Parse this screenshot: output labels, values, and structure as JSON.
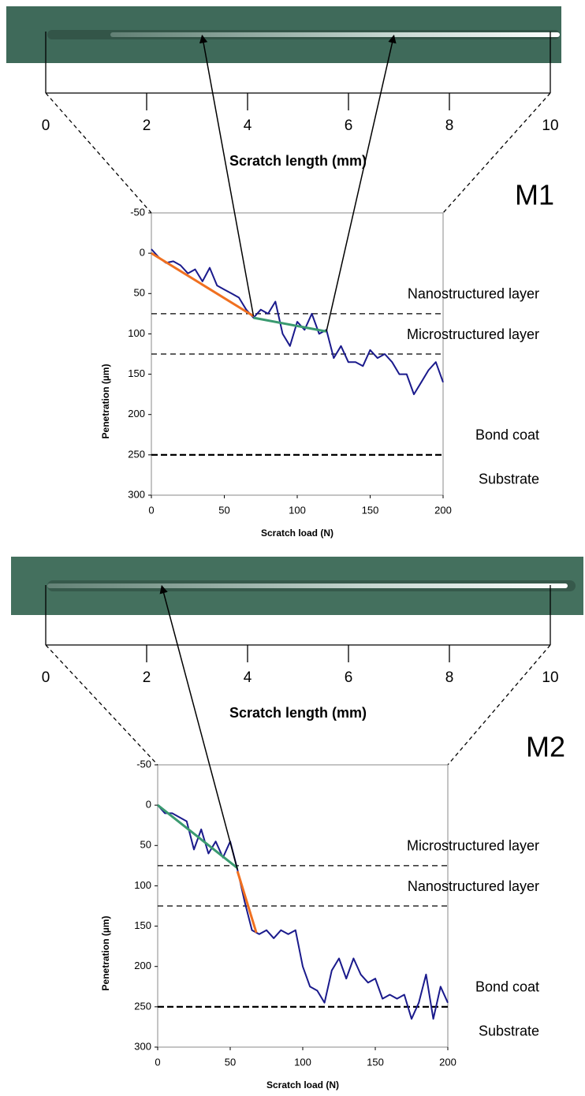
{
  "chart_data": [
    {
      "type": "line",
      "title": "M1",
      "x_label": "Scratch load (N)",
      "y_label": "Penetration (µm)",
      "xlim": [
        0,
        200
      ],
      "ylim": [
        -50,
        300
      ],
      "y_inverted": true,
      "xticks": [
        0,
        50,
        100,
        150,
        200
      ],
      "yticks": [
        -50,
        0,
        50,
        100,
        150,
        200,
        250,
        300
      ],
      "x": [
        0,
        5,
        10,
        15,
        20,
        25,
        30,
        35,
        40,
        45,
        50,
        55,
        60,
        65,
        70,
        75,
        80,
        85,
        90,
        95,
        100,
        105,
        110,
        115,
        120,
        125,
        130,
        135,
        140,
        145,
        150,
        155,
        160,
        165,
        170,
        175,
        180,
        185,
        190,
        195,
        200
      ],
      "series": [
        {
          "color": "#1a1a8c",
          "values": [
            -5,
            5,
            12,
            10,
            15,
            25,
            20,
            35,
            18,
            40,
            45,
            50,
            55,
            70,
            80,
            70,
            75,
            60,
            100,
            115,
            85,
            95,
            75,
            100,
            95,
            130,
            115,
            135,
            135,
            140,
            120,
            130,
            125,
            135,
            150,
            150,
            175,
            160,
            145,
            135,
            160
          ]
        },
        {
          "color": "#f07020",
          "x": [
            0,
            70
          ],
          "values": [
            0,
            78
          ]
        },
        {
          "color": "#3a9a70",
          "x": [
            70,
            120
          ],
          "values": [
            80,
            97
          ]
        }
      ],
      "boundaries": [
        75,
        125,
        250
      ],
      "layers": [
        "Nanostructured layer",
        "Microstructured layer",
        "Bond coat",
        "Substrate"
      ],
      "scale": {
        "label": "Scratch length (mm)",
        "lim": [
          0,
          10
        ],
        "ticks": [
          0,
          2,
          4,
          6,
          8,
          10
        ]
      },
      "arrows": [
        {
          "length": 3.1,
          "load": 70,
          "penetration": 78
        },
        {
          "length": 6.9,
          "load": 120,
          "penetration": 97
        }
      ]
    },
    {
      "type": "line",
      "title": "M2",
      "x_label": "Scratch load (N)",
      "y_label": "Penetration (µm)",
      "xlim": [
        0,
        200
      ],
      "ylim": [
        -50,
        300
      ],
      "y_inverted": true,
      "xticks": [
        0,
        50,
        100,
        150,
        200
      ],
      "yticks": [
        -50,
        0,
        50,
        100,
        150,
        200,
        250,
        300
      ],
      "x": [
        0,
        5,
        10,
        15,
        20,
        25,
        30,
        35,
        40,
        45,
        50,
        55,
        60,
        65,
        70,
        75,
        80,
        85,
        90,
        95,
        100,
        105,
        110,
        115,
        120,
        125,
        130,
        135,
        140,
        145,
        150,
        155,
        160,
        165,
        170,
        175,
        180,
        185,
        190,
        195,
        200
      ],
      "series": [
        {
          "color": "#1a1a8c",
          "values": [
            0,
            10,
            10,
            15,
            20,
            55,
            30,
            60,
            45,
            65,
            45,
            80,
            120,
            155,
            160,
            155,
            165,
            155,
            160,
            155,
            200,
            225,
            230,
            245,
            205,
            190,
            215,
            190,
            210,
            220,
            215,
            240,
            235,
            240,
            235,
            265,
            245,
            210,
            265,
            225,
            245
          ]
        },
        {
          "color": "#3a9a70",
          "x": [
            0,
            55
          ],
          "values": [
            0,
            78
          ]
        },
        {
          "color": "#f07020",
          "x": [
            55,
            68
          ],
          "values": [
            82,
            158
          ]
        }
      ],
      "boundaries": [
        75,
        125,
        250
      ],
      "layers": [
        "Microstructured layer",
        "Nanostructured layer",
        "Bond coat",
        "Substrate"
      ],
      "scale": {
        "label": "Scratch length (mm)",
        "lim": [
          0,
          10
        ],
        "ticks": [
          0,
          2,
          4,
          6,
          8,
          10
        ]
      },
      "arrows": [
        {
          "length": 2.3,
          "load": 55,
          "penetration": 80
        }
      ]
    }
  ]
}
